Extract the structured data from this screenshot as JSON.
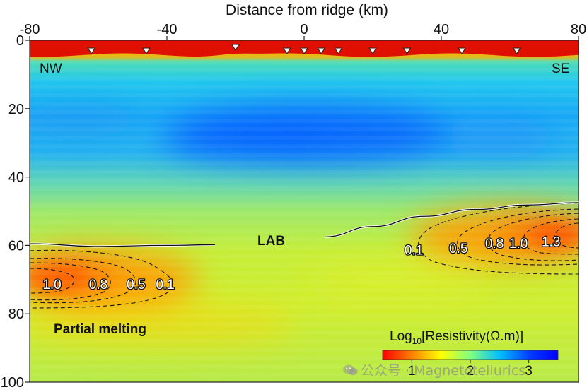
{
  "chart_data": {
    "type": "heatmap",
    "xlabel": "Distance from ridge (km)",
    "x_ticks": [
      "-80",
      "-40",
      "0",
      "40",
      "80"
    ],
    "xlim": [
      -80,
      80
    ],
    "y_ticks": [
      "0",
      "20",
      "40",
      "60",
      "80",
      "100"
    ],
    "ylim": [
      0,
      100
    ],
    "y_inverted": true,
    "side_labels": {
      "left": "NW",
      "right": "SE"
    },
    "stations_x_km": [
      -62,
      -46,
      -20,
      -5,
      0,
      5,
      10,
      20,
      30,
      46,
      62
    ],
    "lab_boundary": {
      "label": "LAB",
      "west": [
        [
          -80,
          59.5
        ],
        [
          -60,
          60.3
        ],
        [
          -40,
          60
        ],
        [
          -26,
          59.8
        ]
      ],
      "east": [
        [
          6,
          57.5
        ],
        [
          20,
          54.5
        ],
        [
          35,
          51.5
        ],
        [
          50,
          49.5
        ],
        [
          65,
          48.2
        ],
        [
          80,
          47.5
        ]
      ]
    },
    "partial_melt_label": "Partial melting",
    "contours": {
      "west": [
        {
          "label": "1.0",
          "label_x": -73.5,
          "label_y": 71.5
        },
        {
          "label": "0.8",
          "label_x": -60,
          "label_y": 71.5
        },
        {
          "label": "0.5",
          "label_x": -49,
          "label_y": 71.5
        },
        {
          "label": "0.1",
          "label_x": -40.5,
          "label_y": 71.5
        }
      ],
      "east": [
        {
          "label": "0.1",
          "label_x": 32,
          "label_y": 61.5
        },
        {
          "label": "0.5",
          "label_x": 45,
          "label_y": 61
        },
        {
          "label": "0.8",
          "label_x": 55.5,
          "label_y": 59.5
        },
        {
          "label": "1.0",
          "label_x": 62.5,
          "label_y": 59.5
        },
        {
          "label": "1.3",
          "label_x": 72,
          "label_y": 59
        }
      ]
    },
    "colorbar": {
      "title_prefix": "Log",
      "title_sub": "10",
      "title_suffix": "[Resistivity(Ω.m)]",
      "ticks": [
        "1",
        "2",
        "3"
      ],
      "range": [
        0.5,
        3.5
      ],
      "colors": [
        "#ff0000",
        "#ff8000",
        "#ffff00",
        "#80ff80",
        "#00c0ff",
        "#0040ff",
        "#0000ff"
      ]
    }
  },
  "watermark": "公众号 · Magnetotellurics"
}
